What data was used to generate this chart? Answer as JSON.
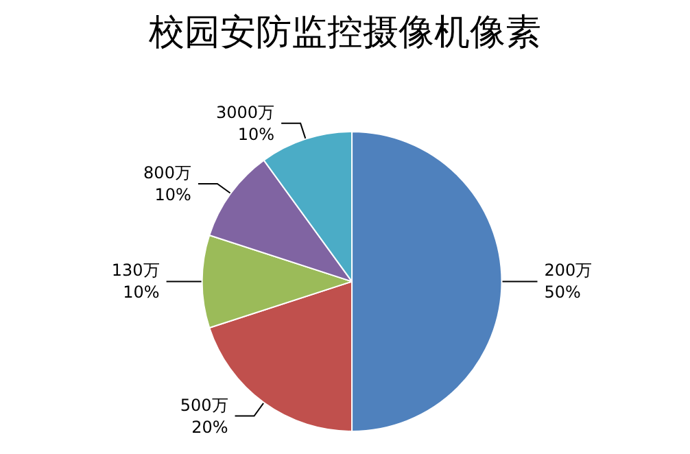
{
  "chart_data": {
    "type": "pie",
    "title": "校园安防监控摄像机像素",
    "categories": [
      "200万",
      "500万",
      "130万",
      "800万",
      "3000万"
    ],
    "values": [
      50,
      20,
      10,
      10,
      10
    ],
    "value_labels": [
      "50%",
      "20%",
      "10%",
      "10%",
      "10%"
    ],
    "colors": [
      "#4f81bd",
      "#c0504d",
      "#9bbb59",
      "#8064a2",
      "#4bacc6"
    ]
  }
}
